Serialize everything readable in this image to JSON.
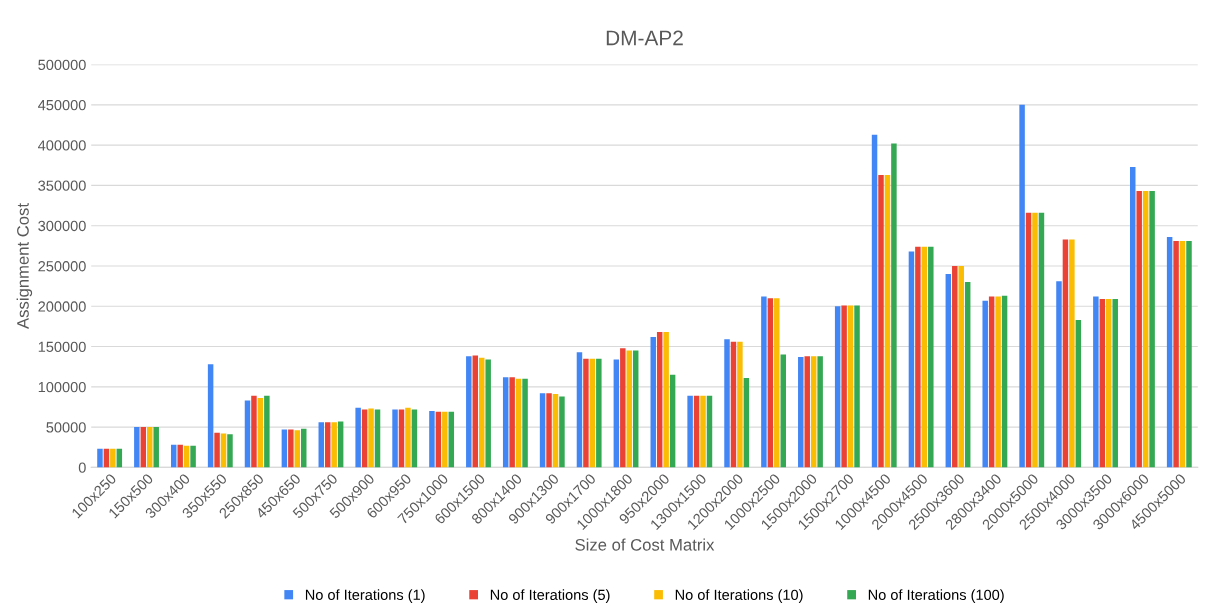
{
  "chart_data": {
    "type": "bar",
    "title": "DM-AP2",
    "xlabel": "Size of Cost Matrix",
    "ylabel": "Assignment Cost",
    "categories": [
      "100x250",
      "150x500",
      "300x400",
      "350x550",
      "250x850",
      "450x650",
      "500x750",
      "500x900",
      "600x950",
      "750x1000",
      "600x1500",
      "800x1400",
      "900x1300",
      "900x1700",
      "1000x1800",
      "950x2000",
      "1300x1500",
      "1200x2000",
      "1000x2500",
      "1500x2000",
      "1500x2700",
      "1000x4500",
      "2000x4500",
      "2500x3600",
      "2800x3400",
      "2000x5000",
      "2500x4000",
      "3000x3500",
      "3000x6000",
      "4500x5000"
    ],
    "series": [
      {
        "name": "No of Iterations (1)",
        "color": "#4285f4",
        "values": [
          23000,
          50000,
          28000,
          128000,
          83000,
          47000,
          56000,
          74000,
          72000,
          70000,
          138000,
          112000,
          92000,
          143000,
          134000,
          162000,
          89000,
          159000,
          212000,
          137000,
          200000,
          413000,
          268000,
          240000,
          207000,
          450000,
          231000,
          212000,
          373000,
          286000
        ]
      },
      {
        "name": "No of Iterations (5)",
        "color": "#ea4335",
        "values": [
          23000,
          50000,
          28000,
          43000,
          89000,
          47000,
          56000,
          72000,
          72000,
          69000,
          139000,
          112000,
          92000,
          135000,
          148000,
          168000,
          89000,
          156000,
          210000,
          138000,
          201000,
          363000,
          274000,
          250000,
          212000,
          316000,
          283000,
          209000,
          343000,
          281000
        ]
      },
      {
        "name": "No of Iterations (10)",
        "color": "#fbbc04",
        "values": [
          23000,
          50000,
          27000,
          42000,
          86000,
          46000,
          56000,
          73000,
          74000,
          69000,
          136000,
          110000,
          91000,
          135000,
          145000,
          168000,
          89000,
          156000,
          210000,
          138000,
          201000,
          363000,
          274000,
          250000,
          212000,
          316000,
          283000,
          209000,
          343000,
          281000
        ]
      },
      {
        "name": "No of Iterations (100)",
        "color": "#34a853",
        "values": [
          23000,
          50000,
          27000,
          41000,
          89000,
          48000,
          57000,
          72000,
          72000,
          69000,
          134000,
          110000,
          88000,
          135000,
          145000,
          115000,
          89000,
          111000,
          140000,
          138000,
          201000,
          402000,
          274000,
          230000,
          213000,
          316000,
          183000,
          209000,
          343000,
          281000
        ]
      }
    ],
    "ylim": [
      0,
      500000
    ],
    "yticks": [
      0,
      50000,
      100000,
      150000,
      200000,
      250000,
      300000,
      350000,
      400000,
      450000,
      500000
    ],
    "grid": "y",
    "legend": "bottom"
  }
}
